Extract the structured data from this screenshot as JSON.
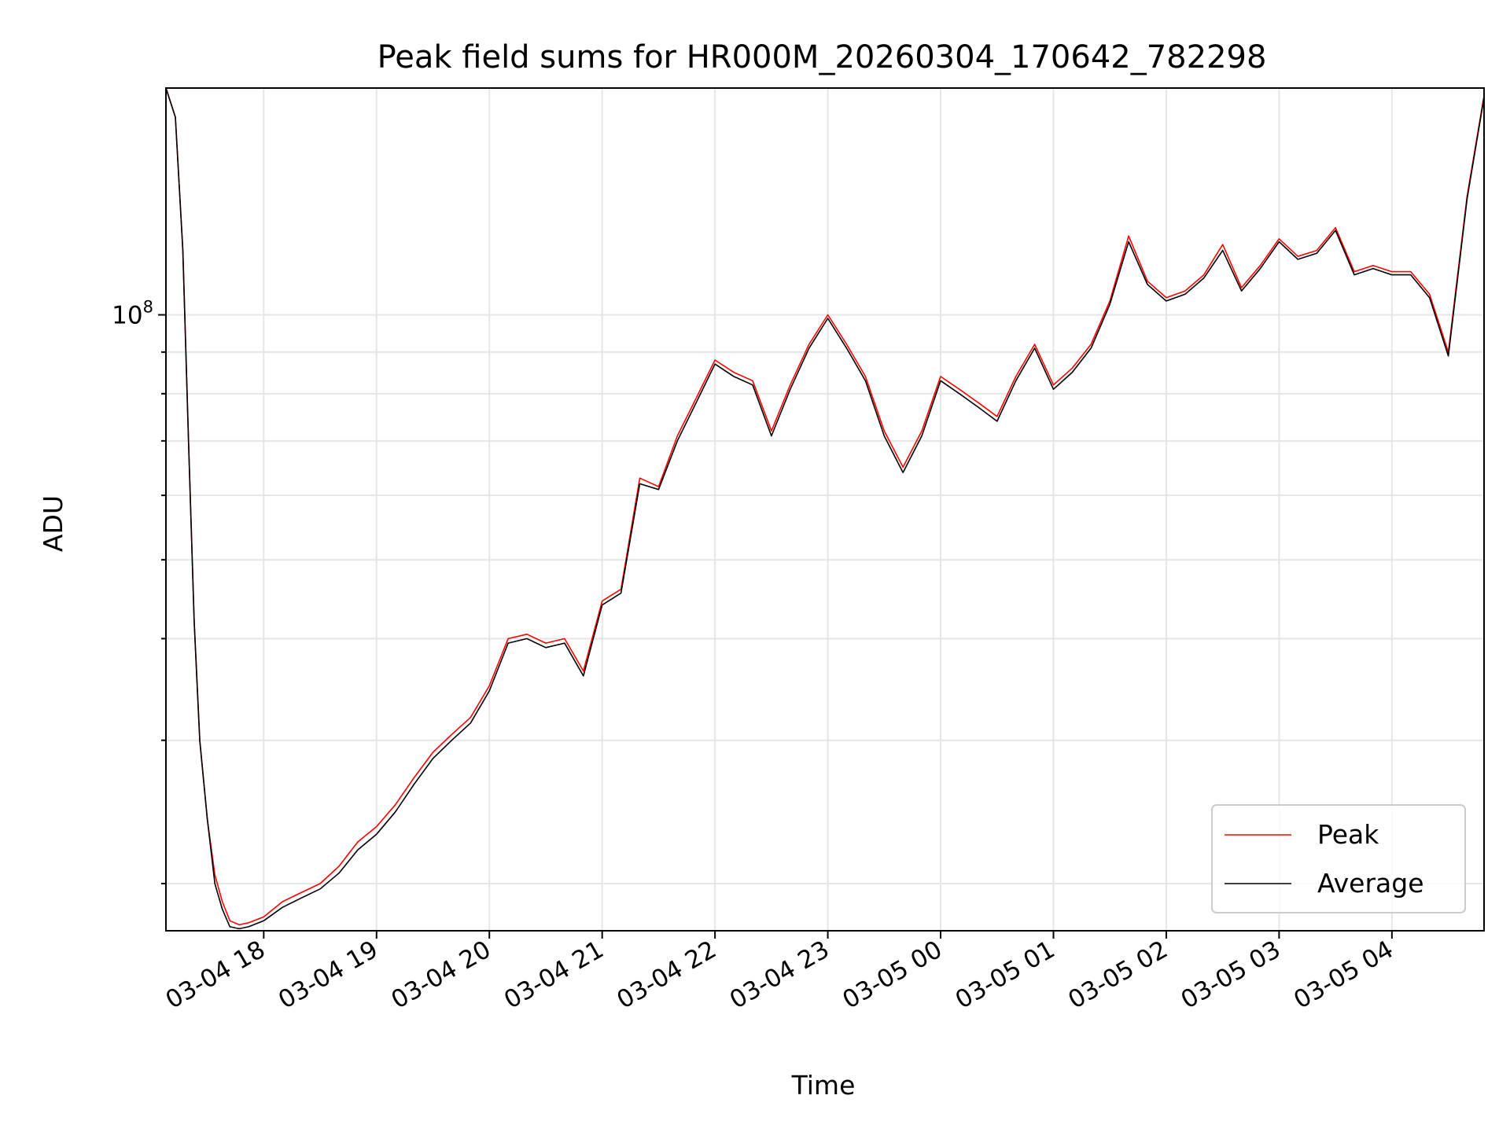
{
  "chart_data": {
    "type": "line",
    "title": "Peak field sums for HR000M_20260304_170642_782298",
    "xlabel": "Time",
    "ylabel": "ADU",
    "y_scale": "log",
    "ylim": [
      17500000,
      190000000
    ],
    "xlim": [
      "03-04 17:08",
      "03-05 04:49"
    ],
    "x_ticks": [
      "03-04 18",
      "03-04 19",
      "03-04 20",
      "03-04 21",
      "03-04 22",
      "03-04 23",
      "03-05 00",
      "03-05 01",
      "03-05 02",
      "03-05 03",
      "03-05 04"
    ],
    "y_ticks": [
      {
        "value": 100000000,
        "base": "10",
        "exponent": "8"
      }
    ],
    "grid": true,
    "legend_position": "lower-right",
    "colors": {
      "Peak": "#ff0000",
      "Average": "#000000",
      "grid": "#e6e6e6"
    },
    "x": [
      "03-04 17:08",
      "03-04 17:13",
      "03-04 17:17",
      "03-04 17:20",
      "03-04 17:23",
      "03-04 17:26",
      "03-04 17:30",
      "03-04 17:34",
      "03-04 17:38",
      "03-04 17:42",
      "03-04 17:47",
      "03-04 17:52",
      "03-04 18:00",
      "03-04 18:10",
      "03-04 18:20",
      "03-04 18:30",
      "03-04 18:40",
      "03-04 18:50",
      "03-04 19:00",
      "03-04 19:10",
      "03-04 19:20",
      "03-04 19:30",
      "03-04 19:40",
      "03-04 19:50",
      "03-04 20:00",
      "03-04 20:10",
      "03-04 20:20",
      "03-04 20:30",
      "03-04 20:40",
      "03-04 20:50",
      "03-04 21:00",
      "03-04 21:10",
      "03-04 21:20",
      "03-04 21:30",
      "03-04 21:40",
      "03-04 21:50",
      "03-04 22:00",
      "03-04 22:10",
      "03-04 22:20",
      "03-04 22:30",
      "03-04 22:40",
      "03-04 22:50",
      "03-04 23:00",
      "03-04 23:10",
      "03-04 23:20",
      "03-04 23:30",
      "03-04 23:40",
      "03-04 23:50",
      "03-05 00:00",
      "03-05 00:10",
      "03-05 00:20",
      "03-05 00:30",
      "03-05 00:40",
      "03-05 00:50",
      "03-05 01:00",
      "03-05 01:10",
      "03-05 01:20",
      "03-05 01:30",
      "03-05 01:40",
      "03-05 01:50",
      "03-05 02:00",
      "03-05 02:10",
      "03-05 02:20",
      "03-05 02:30",
      "03-05 02:40",
      "03-05 02:50",
      "03-05 03:00",
      "03-05 03:10",
      "03-05 03:20",
      "03-05 03:30",
      "03-05 03:40",
      "03-05 03:50",
      "03-05 04:00",
      "03-05 04:10",
      "03-05 04:20",
      "03-05 04:30",
      "03-05 04:40",
      "03-05 04:49"
    ],
    "series": [
      {
        "name": "Peak",
        "values": [
          190000000,
          175000000,
          120000000,
          70000000,
          42000000,
          30000000,
          24000000,
          20500000,
          19000000,
          18000000,
          17800000,
          17900000,
          18200000,
          19000000,
          19500000,
          20000000,
          21000000,
          22500000,
          23500000,
          25000000,
          27000000,
          29000000,
          30500000,
          32000000,
          35000000,
          40000000,
          40500000,
          39500000,
          40000000,
          36500000,
          44500000,
          46000000,
          63000000,
          61500000,
          71000000,
          79000000,
          88000000,
          85000000,
          83000000,
          72000000,
          82000000,
          92000000,
          100000000,
          92000000,
          84000000,
          72000000,
          65000000,
          72000000,
          84000000,
          81000000,
          78000000,
          75000000,
          84000000,
          92000000,
          82000000,
          86000000,
          92000000,
          104000000,
          125000000,
          110000000,
          105000000,
          107000000,
          112000000,
          122000000,
          108000000,
          115000000,
          124000000,
          118000000,
          120000000,
          128000000,
          113000000,
          115000000,
          113000000,
          113000000,
          106000000,
          90000000,
          140000000,
          186000000
        ]
      },
      {
        "name": "Average",
        "values": [
          190000000,
          175000000,
          120000000,
          70000000,
          42000000,
          30000000,
          24000000,
          20000000,
          18600000,
          17700000,
          17600000,
          17700000,
          18000000,
          18700000,
          19200000,
          19700000,
          20600000,
          22000000,
          23000000,
          24500000,
          26500000,
          28500000,
          30000000,
          31500000,
          34500000,
          39500000,
          40000000,
          39000000,
          39500000,
          36000000,
          44000000,
          45500000,
          62000000,
          61000000,
          70000000,
          78000000,
          87000000,
          84000000,
          82000000,
          71000000,
          81000000,
          91000000,
          99000000,
          91000000,
          83000000,
          71000000,
          64000000,
          71000000,
          83000000,
          80000000,
          77000000,
          74000000,
          83000000,
          91000000,
          81000000,
          85000000,
          91000000,
          103000000,
          123000000,
          109000000,
          104000000,
          106000000,
          111000000,
          120000000,
          107000000,
          114000000,
          123000000,
          117000000,
          119000000,
          127000000,
          112000000,
          114000000,
          112000000,
          112000000,
          105000000,
          89000000,
          139000000,
          185000000
        ]
      }
    ]
  }
}
